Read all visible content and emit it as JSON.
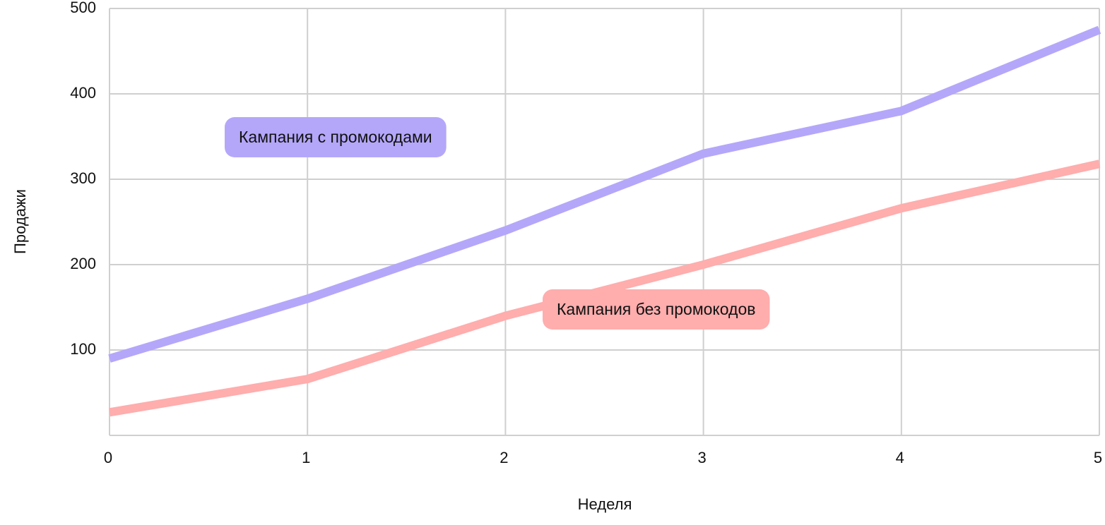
{
  "chart_data": {
    "type": "line",
    "x_label": "Неделя",
    "y_label": "Продажи",
    "x": [
      0,
      1,
      2,
      3,
      4,
      5
    ],
    "series": [
      {
        "name": "Кампания с промокодами",
        "color": "#b4a7fa",
        "values": [
          90,
          160,
          240,
          330,
          380,
          475
        ]
      },
      {
        "name": "Кампания без промокодов",
        "color": "#ffadad",
        "values": [
          27,
          66,
          140,
          200,
          266,
          318
        ]
      }
    ],
    "xlim": [
      0,
      5
    ],
    "xticks": [
      0,
      1,
      2,
      3,
      4,
      5
    ],
    "ylim": [
      0,
      500
    ],
    "yticks": [
      100,
      200,
      300,
      400,
      500
    ],
    "grid": true
  }
}
